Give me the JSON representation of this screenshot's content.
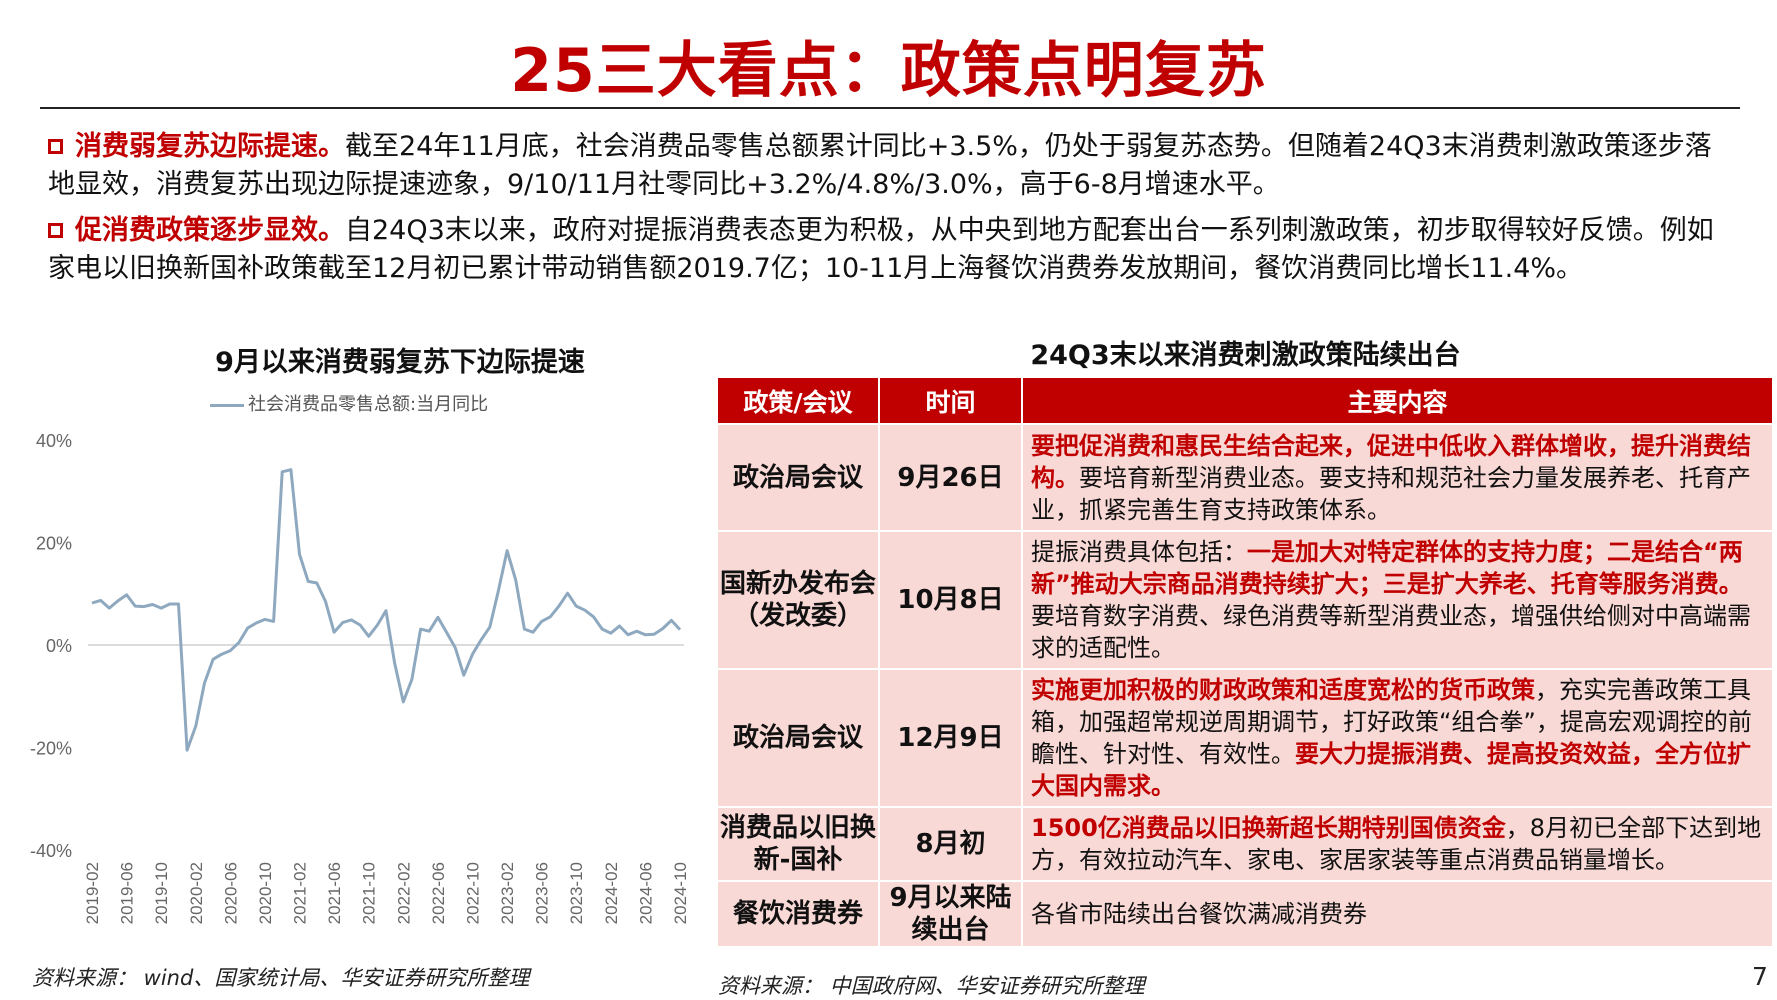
{
  "title": "25三大看点：政策点明复苏",
  "bullets": [
    {
      "lead": "消费弱复苏边际提速。",
      "text": "截至24年11月底，社会消费品零售总额累计同比+3.5%，仍处于弱复苏态势。但随着24Q3末消费刺激政策逐步落地显效，消费复苏出现边际提速迹象，9/10/11月社零同比+3.2%/4.8%/3.0%，高于6-8月增速水平。"
    },
    {
      "lead": "促消费政策逐步显效。",
      "text": "自24Q3末以来，政府对提振消费表态更为积极，从中央到地方配套出台一系列刺激政策，初步取得较好反馈。例如家电以旧换新国补政策截至12月初已累计带动销售额2019.7亿；10-11月上海餐饮消费券发放期间，餐饮消费同比增长11.4%。"
    }
  ],
  "chart_data": {
    "type": "line",
    "title": "9月以来消费弱复苏下边际提速",
    "legend_position": "top",
    "series": [
      {
        "name": "社会消费品零售总额:当月同比",
        "color": "#8ea9bf",
        "values": [
          8.2,
          8.7,
          7.2,
          8.6,
          9.8,
          7.6,
          7.5,
          7.9,
          7.2,
          8.0,
          8.0,
          -20.5,
          -15.8,
          -7.5,
          -2.8,
          -1.8,
          -1.1,
          0.5,
          3.3,
          4.3,
          5.0,
          4.6,
          33.8,
          34.2,
          17.7,
          12.4,
          12.1,
          8.5,
          2.5,
          4.4,
          4.9,
          3.9,
          1.7,
          3.9,
          6.7,
          -3.5,
          -11.1,
          -6.7,
          3.1,
          2.7,
          5.4,
          2.5,
          -0.5,
          -5.9,
          -1.8,
          1.0,
          3.5,
          10.6,
          18.4,
          12.7,
          3.1,
          2.5,
          4.6,
          5.5,
          7.6,
          10.1,
          7.6,
          6.8,
          5.5,
          3.1,
          2.3,
          3.7,
          2.0,
          2.7,
          2.0,
          2.1,
          3.2,
          4.8,
          3.0
        ]
      }
    ],
    "x_tick_labels": [
      "2019-02",
      "2019-06",
      "2019-10",
      "2020-02",
      "2020-06",
      "2020-10",
      "2021-02",
      "2021-06",
      "2021-10",
      "2022-02",
      "2022-06",
      "2022-10",
      "2023-02",
      "2023-06",
      "2023-10",
      "2024-02",
      "2024-06",
      "2024-10"
    ],
    "y_tick_labels": [
      "40%",
      "20%",
      "0%",
      "-20%",
      "-40%"
    ],
    "ylim": [
      -40,
      40
    ],
    "grid": false
  },
  "chart_source": "资料来源：  wind、国家统计局、华安证券研究所整理",
  "table": {
    "title": "24Q3末以来消费刺激政策陆续出台",
    "headers": [
      "政策/会议",
      "时间",
      "主要内容"
    ],
    "rows": [
      {
        "name": "政治局会议",
        "time": "9月26日",
        "content": [
          {
            "text": "要把促消费和惠民生结合起来，促进中低收入群体增收，提升消费结构。",
            "red": true
          },
          {
            "text": "要培育新型消费业态。要支持和规范社会力量发展养老、托育产业，抓紧完善生育支持政策体系。",
            "red": false
          }
        ]
      },
      {
        "name": "国新办发布会（发改委）",
        "time": "10月8日",
        "content": [
          {
            "text": "提振消费具体包括：",
            "red": false
          },
          {
            "text": "一是加大对特定群体的支持力度；二是结合“两新”推动大宗商品消费持续扩大；三是扩大养老、托育等服务消费。",
            "red": true
          },
          {
            "text": "要培育数字消费、绿色消费等新型消费业态，增强供给侧对中高端需求的适配性。",
            "red": false
          }
        ]
      },
      {
        "name": "政治局会议",
        "time": "12月9日",
        "content": [
          {
            "text": "实施更加积极的财政政策和适度宽松的货币政策",
            "red": true
          },
          {
            "text": "，充实完善政策工具箱，加强超常规逆周期调节，打好政策“组合拳”，提高宏观调控的前瞻性、针对性、有效性。",
            "red": false
          },
          {
            "text": "要大力提振消费、提高投资效益，全方位扩大国内需求。",
            "red": true
          }
        ]
      },
      {
        "name": "消费品以旧换新-国补",
        "time": "8月初",
        "content": [
          {
            "text": "1500亿消费品以旧换新超长期特别国债资金",
            "red": true
          },
          {
            "text": "，8月初已全部下达到地方，有效拉动汽车、家电、家居家装等重点消费品销量增长。",
            "red": false
          }
        ]
      },
      {
        "name": "餐饮消费券",
        "time": "9月以来陆续出台",
        "content": [
          {
            "text": "各省市陆续出台餐饮满减消费券",
            "red": false
          }
        ]
      }
    ]
  },
  "table_source": "资料来源：  中国政府网、华安证券研究所整理",
  "page_number": "7"
}
